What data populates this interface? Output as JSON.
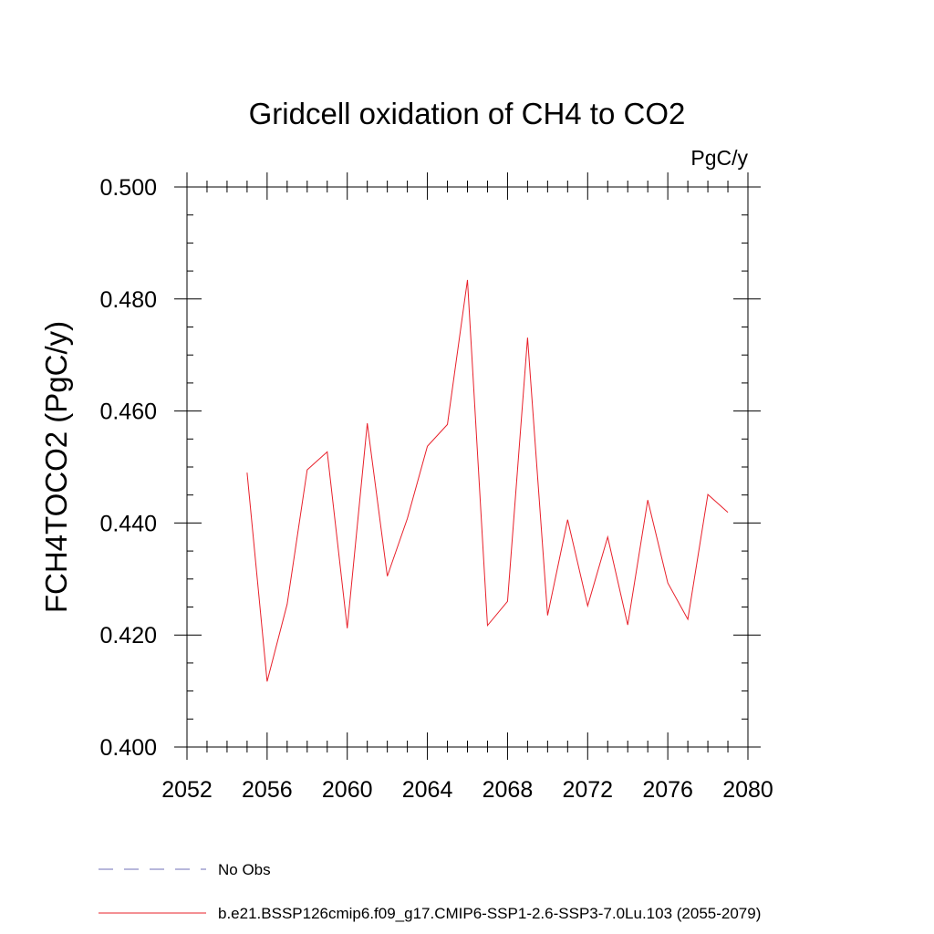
{
  "chart_data": {
    "type": "line",
    "title": "Gridcell oxidation of CH4 to CO2",
    "units": "PgC/y",
    "xlabel": "",
    "ylabel": "FCH4TOCO2  (PgC/y)",
    "xlim": [
      2052,
      2080
    ],
    "ylim": [
      0.4,
      0.5
    ],
    "x_ticks": [
      2052,
      2056,
      2060,
      2064,
      2068,
      2072,
      2076,
      2080
    ],
    "x_tick_labels": [
      "2052",
      "2056",
      "2060",
      "2064",
      "2068",
      "2072",
      "2076",
      "2080"
    ],
    "y_ticks": [
      0.4,
      0.42,
      0.44,
      0.46,
      0.48,
      0.5
    ],
    "y_tick_labels": [
      "0.400",
      "0.420",
      "0.440",
      "0.460",
      "0.480",
      "0.500"
    ],
    "grid": false,
    "legend_position": "bottom",
    "series": [
      {
        "name": "b.e21.BSSP126cmip6.f09_g17.CMIP6-SSP1-2.6-SSP3-7.0Lu.103 (2055-2079)",
        "color": "#e8202a",
        "style": "solid",
        "x": [
          2055,
          2056,
          2057,
          2058,
          2059,
          2060,
          2061,
          2062,
          2063,
          2064,
          2065,
          2066,
          2067,
          2068,
          2069,
          2070,
          2071,
          2072,
          2073,
          2074,
          2075,
          2076,
          2077,
          2078,
          2079
        ],
        "y": [
          0.449,
          0.4117,
          0.4255,
          0.4495,
          0.4527,
          0.4212,
          0.4578,
          0.4305,
          0.4408,
          0.4537,
          0.4576,
          0.4834,
          0.4217,
          0.426,
          0.4731,
          0.4235,
          0.4406,
          0.4252,
          0.4375,
          0.4218,
          0.4441,
          0.4293,
          0.4228,
          0.4451,
          0.4419
        ]
      }
    ],
    "legend": [
      {
        "label": "No Obs",
        "color": "#6f6fb7",
        "style": "dashed"
      },
      {
        "label": "b.e21.BSSP126cmip6.f09_g17.CMIP6-SSP1-2.6-SSP3-7.0Lu.103 (2055-2079)",
        "color": "#e8202a",
        "style": "solid"
      }
    ]
  }
}
